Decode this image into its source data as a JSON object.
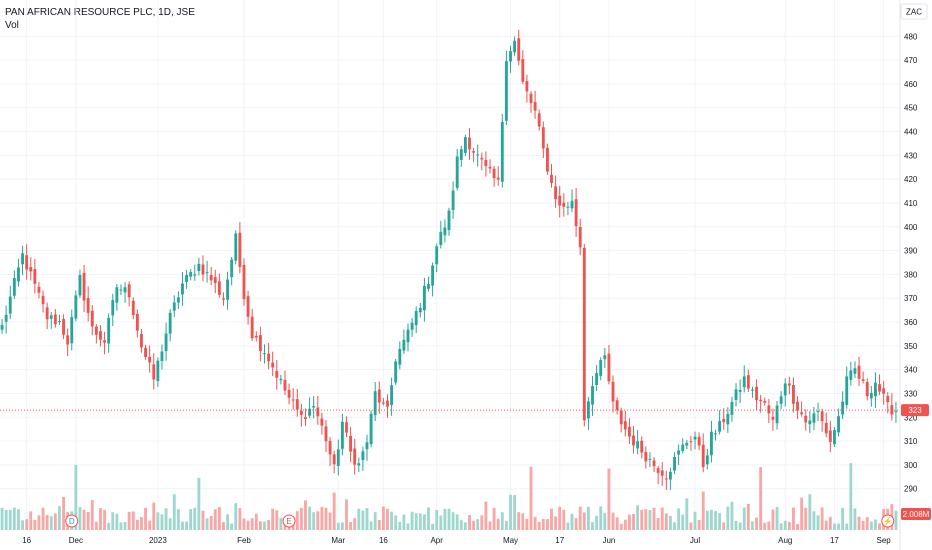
{
  "legend": {
    "title": "PAN AFRICAN RESOURCE PLC, 1D, JSE",
    "volume_label": "Vol"
  },
  "currency": "ZAC",
  "colors": {
    "up": "#26a69a",
    "down": "#ef5350",
    "vol_up": "#9fd7cf",
    "vol_down": "#f6a7a6",
    "grid": "#f0f3fa",
    "text": "#131722"
  },
  "price_badge": {
    "value": "323",
    "color": "#ef5350"
  },
  "volume_badge": {
    "value": "2.008M",
    "color": "#ef5350"
  },
  "event_markers": [
    {
      "name": "dividend-marker",
      "letter": "D",
      "date_index": 17
    },
    {
      "name": "earnings-marker",
      "letter": "E",
      "date_index": 70
    },
    {
      "name": "split-marker",
      "letter": "⚡",
      "date_index": 216
    }
  ],
  "chart_data": {
    "type": "candlestick",
    "title": "PAN AFRICAN RESOURCE PLC, 1D, JSE",
    "y_axis_ticks": [
      290,
      300,
      310,
      320,
      330,
      340,
      350,
      360,
      370,
      380,
      390,
      400,
      410,
      420,
      430,
      440,
      450,
      460,
      470,
      480
    ],
    "ylim": [
      284,
      486
    ],
    "last_price": 323,
    "x_axis_labels": [
      {
        "label": "16",
        "index": 6
      },
      {
        "label": "Dec",
        "index": 18
      },
      {
        "label": "2023",
        "index": 38
      },
      {
        "label": "Feb",
        "index": 59
      },
      {
        "label": "Mar",
        "index": 82
      },
      {
        "label": "16",
        "index": 93
      },
      {
        "label": "Apr",
        "index": 106
      },
      {
        "label": "May",
        "index": 124
      },
      {
        "label": "17",
        "index": 136
      },
      {
        "label": "Jun",
        "index": 148
      },
      {
        "label": "Jul",
        "index": 169
      },
      {
        "label": "Aug",
        "index": 191
      },
      {
        "label": "17",
        "index": 203
      },
      {
        "label": "Sep",
        "index": 215
      }
    ],
    "waypoints": [
      [
        0,
        358
      ],
      [
        2,
        370
      ],
      [
        5,
        388
      ],
      [
        8,
        375
      ],
      [
        11,
        362
      ],
      [
        14,
        360
      ],
      [
        16,
        352
      ],
      [
        19,
        378
      ],
      [
        22,
        357
      ],
      [
        25,
        352
      ],
      [
        28,
        375
      ],
      [
        31,
        372
      ],
      [
        34,
        350
      ],
      [
        37,
        336
      ],
      [
        41,
        362
      ],
      [
        44,
        376
      ],
      [
        48,
        384
      ],
      [
        51,
        378
      ],
      [
        54,
        370
      ],
      [
        57,
        395
      ],
      [
        59,
        372
      ],
      [
        61,
        355
      ],
      [
        64,
        348
      ],
      [
        67,
        338
      ],
      [
        70,
        328
      ],
      [
        73,
        320
      ],
      [
        76,
        325
      ],
      [
        79,
        311
      ],
      [
        81,
        298
      ],
      [
        83,
        318
      ],
      [
        85,
        305
      ],
      [
        87,
        300
      ],
      [
        89,
        310
      ],
      [
        91,
        330
      ],
      [
        94,
        322
      ],
      [
        96,
        345
      ],
      [
        99,
        355
      ],
      [
        102,
        368
      ],
      [
        104,
        378
      ],
      [
        106,
        392
      ],
      [
        109,
        405
      ],
      [
        111,
        428
      ],
      [
        113,
        438
      ],
      [
        115,
        432
      ],
      [
        118,
        424
      ],
      [
        121,
        418
      ],
      [
        123,
        472
      ],
      [
        125,
        478
      ],
      [
        127,
        460
      ],
      [
        130,
        448
      ],
      [
        132,
        432
      ],
      [
        134,
        418
      ],
      [
        136,
        408
      ],
      [
        139,
        410
      ],
      [
        141,
        392
      ],
      [
        142,
        320
      ],
      [
        144,
        335
      ],
      [
        147,
        345
      ],
      [
        149,
        325
      ],
      [
        151,
        318
      ],
      [
        153,
        312
      ],
      [
        156,
        306
      ],
      [
        159,
        300
      ],
      [
        162,
        296
      ],
      [
        165,
        305
      ],
      [
        167,
        310
      ],
      [
        169,
        312
      ],
      [
        171,
        300
      ],
      [
        173,
        312
      ],
      [
        175,
        316
      ],
      [
        178,
        326
      ],
      [
        181,
        336
      ],
      [
        183,
        330
      ],
      [
        186,
        325
      ],
      [
        188,
        318
      ],
      [
        191,
        336
      ],
      [
        193,
        328
      ],
      [
        196,
        318
      ],
      [
        199,
        322
      ],
      [
        202,
        310
      ],
      [
        204,
        320
      ],
      [
        206,
        335
      ],
      [
        208,
        340
      ],
      [
        211,
        330
      ],
      [
        213,
        335
      ],
      [
        216,
        324
      ],
      [
        218,
        323
      ]
    ],
    "volume_unit": "M",
    "volume_peak_indices": [
      18,
      48,
      129,
      148,
      185,
      207
    ],
    "last_volume": 2.008
  }
}
